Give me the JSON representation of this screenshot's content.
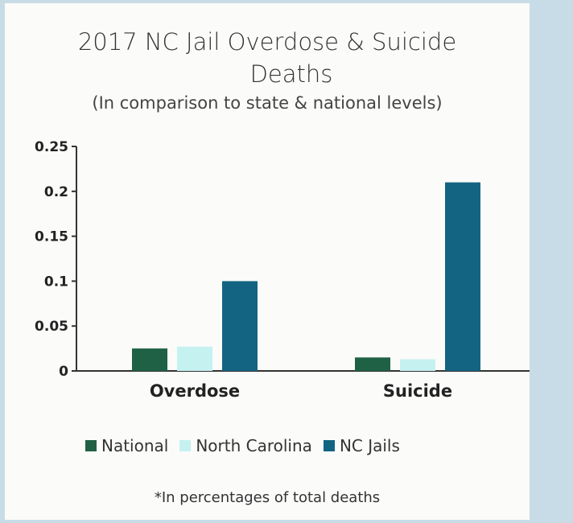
{
  "chart_data": {
    "type": "bar",
    "title_line1": "2017 NC Jail Overdose & Suicide",
    "title_line2": "Deaths",
    "subtitle": "(In comparison to state & national levels)",
    "categories": [
      "Overdose",
      "Suicide"
    ],
    "series": [
      {
        "name": "National",
        "color": "#1f6144",
        "values": [
          0.025,
          0.015
        ]
      },
      {
        "name": "North Carolina",
        "color": "#c6f1f1",
        "values": [
          0.027,
          0.013
        ]
      },
      {
        "name": "NC Jails",
        "color": "#136482",
        "values": [
          0.1,
          0.21
        ]
      }
    ],
    "yticks": [
      "0",
      "0.05",
      "0.1",
      "0.15",
      "0.2",
      "0.25"
    ],
    "ylim": [
      0,
      0.25
    ],
    "grid": false,
    "legend_position": "bottom",
    "footnote": "*In percentages of total deaths"
  }
}
